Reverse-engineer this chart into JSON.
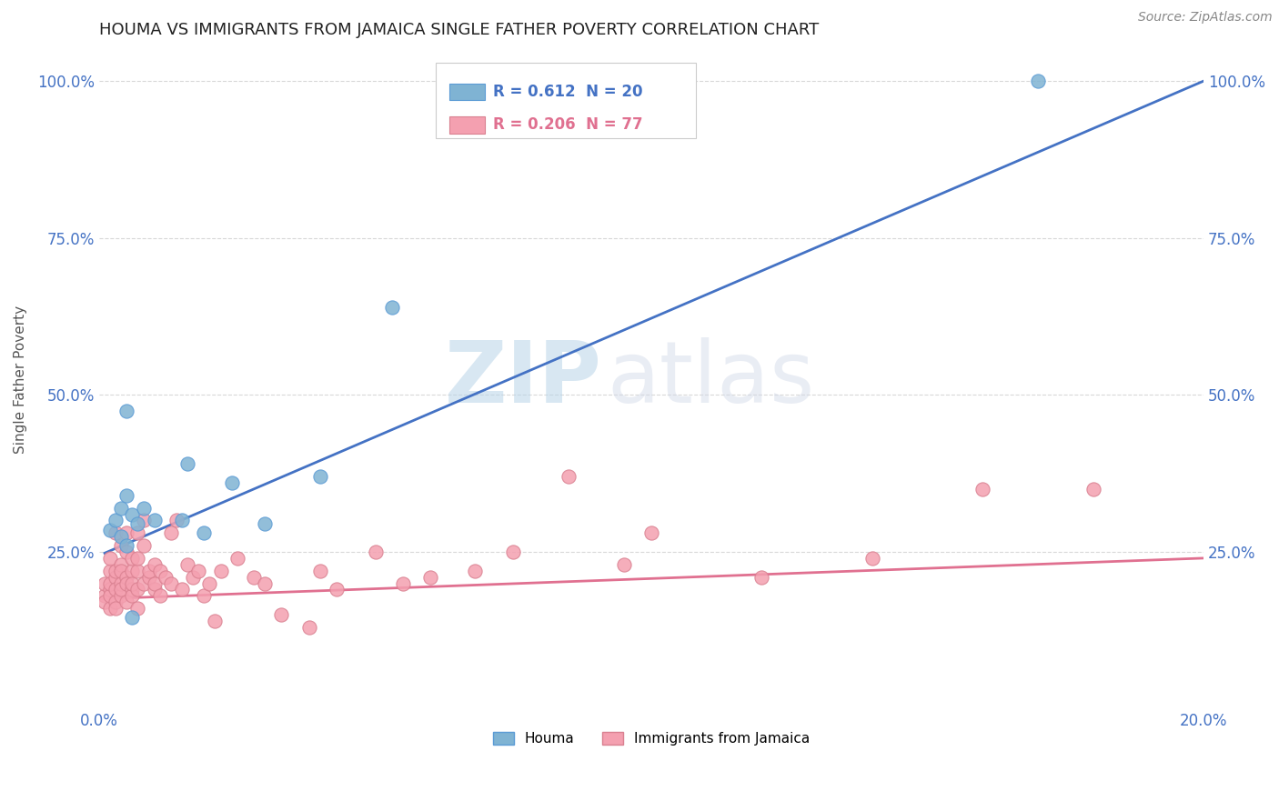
{
  "title": "HOUMA VS IMMIGRANTS FROM JAMAICA SINGLE FATHER POVERTY CORRELATION CHART",
  "source": "Source: ZipAtlas.com",
  "ylabel": "Single Father Poverty",
  "xlim": [
    0.0,
    0.2
  ],
  "ylim": [
    0.0,
    1.05
  ],
  "legend_houma_R": "0.612",
  "legend_houma_N": "20",
  "legend_jamaica_R": "0.206",
  "legend_jamaica_N": "77",
  "color_houma": "#7FB3D3",
  "color_houma_edge": "#5B9BD5",
  "color_houma_line": "#4472C4",
  "color_jamaica": "#F4A0B0",
  "color_jamaica_edge": "#D98090",
  "color_jamaica_line": "#E07090",
  "watermark_zip": "ZIP",
  "watermark_atlas": "atlas",
  "background_color": "#FFFFFF",
  "grid_color": "#D8D8D8",
  "houma_x": [
    0.002,
    0.003,
    0.004,
    0.004,
    0.005,
    0.005,
    0.005,
    0.006,
    0.006,
    0.007,
    0.008,
    0.01,
    0.015,
    0.016,
    0.019,
    0.024,
    0.03,
    0.04,
    0.053,
    0.17
  ],
  "houma_y": [
    0.285,
    0.3,
    0.275,
    0.32,
    0.475,
    0.34,
    0.26,
    0.31,
    0.145,
    0.295,
    0.32,
    0.3,
    0.3,
    0.39,
    0.28,
    0.36,
    0.295,
    0.37,
    0.64,
    1.0
  ],
  "jamaica_x": [
    0.001,
    0.001,
    0.001,
    0.002,
    0.002,
    0.002,
    0.002,
    0.002,
    0.002,
    0.003,
    0.003,
    0.003,
    0.003,
    0.003,
    0.003,
    0.004,
    0.004,
    0.004,
    0.004,
    0.004,
    0.004,
    0.005,
    0.005,
    0.005,
    0.005,
    0.005,
    0.006,
    0.006,
    0.006,
    0.006,
    0.006,
    0.007,
    0.007,
    0.007,
    0.007,
    0.007,
    0.008,
    0.008,
    0.008,
    0.009,
    0.009,
    0.01,
    0.01,
    0.01,
    0.011,
    0.011,
    0.012,
    0.013,
    0.013,
    0.014,
    0.015,
    0.016,
    0.017,
    0.018,
    0.019,
    0.02,
    0.021,
    0.022,
    0.025,
    0.028,
    0.03,
    0.033,
    0.038,
    0.04,
    0.043,
    0.05,
    0.055,
    0.06,
    0.068,
    0.075,
    0.085,
    0.095,
    0.1,
    0.12,
    0.14,
    0.16,
    0.18
  ],
  "jamaica_y": [
    0.18,
    0.2,
    0.17,
    0.22,
    0.19,
    0.24,
    0.16,
    0.18,
    0.2,
    0.28,
    0.21,
    0.17,
    0.19,
    0.22,
    0.16,
    0.26,
    0.18,
    0.2,
    0.23,
    0.19,
    0.22,
    0.21,
    0.17,
    0.25,
    0.2,
    0.28,
    0.19,
    0.22,
    0.24,
    0.18,
    0.2,
    0.22,
    0.19,
    0.16,
    0.28,
    0.24,
    0.2,
    0.26,
    0.3,
    0.21,
    0.22,
    0.19,
    0.23,
    0.2,
    0.22,
    0.18,
    0.21,
    0.28,
    0.2,
    0.3,
    0.19,
    0.23,
    0.21,
    0.22,
    0.18,
    0.2,
    0.14,
    0.22,
    0.24,
    0.21,
    0.2,
    0.15,
    0.13,
    0.22,
    0.19,
    0.25,
    0.2,
    0.21,
    0.22,
    0.25,
    0.37,
    0.23,
    0.28,
    0.21,
    0.24,
    0.35,
    0.35
  ],
  "houma_line_x": [
    0.001,
    0.2
  ],
  "houma_line_y": [
    0.248,
    1.0
  ],
  "jamaica_line_x": [
    0.0,
    0.2
  ],
  "jamaica_line_y": [
    0.175,
    0.24
  ]
}
